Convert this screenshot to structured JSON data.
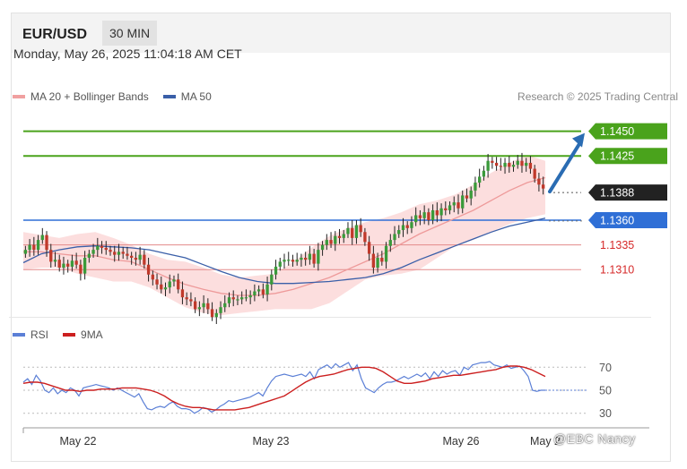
{
  "header": {
    "pair": "EUR/USD",
    "timeframe": "30 MIN"
  },
  "datetime": "Monday, May 26, 2025 11:04:18 AM CET",
  "legend": [
    {
      "label": "MA 20 + Bollinger Bands",
      "color": "#f0a0a0"
    },
    {
      "label": "MA 50",
      "color": "#3a5fa8"
    }
  ],
  "credit": "Research © 2025 Trading Central",
  "watermark": "@EBC Nancy",
  "colors": {
    "resistance": "#4aa31c",
    "support": "#2f6fd6",
    "target_red": "#d62a2a",
    "current": "#222222",
    "arrow": "#2a6cb3",
    "up_candle": "#3a9a3a",
    "down_candle": "#c0392b",
    "band_fill": "#fbd3d3"
  },
  "chart_data": [
    {
      "type": "candlestick",
      "title": "",
      "xlabel": "",
      "ylabel": "",
      "x_ticks": [
        "May 22",
        "May 23",
        "May 26",
        "May 2"
      ],
      "ylim": [
        1.1255,
        1.1465
      ],
      "levels": [
        {
          "value": 1.145,
          "label": "1.1450",
          "kind": "resistance"
        },
        {
          "value": 1.1425,
          "label": "1.1425",
          "kind": "resistance"
        },
        {
          "value": 1.1388,
          "label": "1.1388",
          "kind": "current"
        },
        {
          "value": 1.136,
          "label": "1.1360",
          "kind": "support"
        },
        {
          "value": 1.1335,
          "label": "1.1335",
          "kind": "support-minor"
        },
        {
          "value": 1.131,
          "label": "1.1310",
          "kind": "support-minor"
        }
      ],
      "projection": {
        "from": 1.1388,
        "to": 1.145
      },
      "close_path": [
        1.133,
        1.1335,
        1.133,
        1.134,
        1.1345,
        1.133,
        1.1318,
        1.132,
        1.1312,
        1.1316,
        1.1313,
        1.1319,
        1.1315,
        1.1306,
        1.1322,
        1.1326,
        1.133,
        1.1334,
        1.1332,
        1.133,
        1.1328,
        1.1325,
        1.1328,
        1.1326,
        1.1324,
        1.1322,
        1.132,
        1.1325,
        1.1315,
        1.1305,
        1.13,
        1.1295,
        1.129,
        1.1292,
        1.1298,
        1.13,
        1.129,
        1.1282,
        1.128,
        1.1278,
        1.127,
        1.1272,
        1.1276,
        1.127,
        1.1262,
        1.1266,
        1.1272,
        1.1276,
        1.1282,
        1.128,
        1.128,
        1.1282,
        1.1282,
        1.1284,
        1.1288,
        1.129,
        1.1285,
        1.1295,
        1.1305,
        1.1313,
        1.1318,
        1.132,
        1.132,
        1.1318,
        1.132,
        1.1322,
        1.132,
        1.1326,
        1.1316,
        1.133,
        1.1335,
        1.134,
        1.1336,
        1.1344,
        1.1342,
        1.1346,
        1.1352,
        1.1342,
        1.1355,
        1.1348,
        1.1338,
        1.1326,
        1.1312,
        1.1322,
        1.1318,
        1.1334,
        1.134,
        1.1346,
        1.135,
        1.1355,
        1.1352,
        1.1358,
        1.1365,
        1.1362,
        1.1368,
        1.136,
        1.137,
        1.1365,
        1.1372,
        1.137,
        1.1375,
        1.1378,
        1.1372,
        1.1385,
        1.1382,
        1.139,
        1.1398,
        1.1404,
        1.141,
        1.142,
        1.1418,
        1.1415,
        1.1414,
        1.1418,
        1.1414,
        1.1416,
        1.142,
        1.1415,
        1.1418,
        1.1412,
        1.1402,
        1.1396,
        1.1392
      ],
      "ma20_path": [
        1.1328,
        1.1328,
        1.1326,
        1.1324,
        1.1324,
        1.132,
        1.1318,
        1.131,
        1.1302,
        1.1295,
        1.129,
        1.1286,
        1.1284,
        1.1284,
        1.1286,
        1.129,
        1.1296,
        1.1302,
        1.131,
        1.1318,
        1.1326,
        1.1336,
        1.1346,
        1.1354,
        1.1362,
        1.137,
        1.138,
        1.139,
        1.1398,
        1.1403
      ],
      "band_upper": [
        1.1348,
        1.1345,
        1.1342,
        1.1346,
        1.1348,
        1.1342,
        1.1335,
        1.1326,
        1.132,
        1.1318,
        1.1312,
        1.1305,
        1.1302,
        1.1304,
        1.1306,
        1.1318,
        1.1332,
        1.1344,
        1.1352,
        1.1358,
        1.1362,
        1.1368,
        1.1376,
        1.138,
        1.1386,
        1.1396,
        1.1408,
        1.1418,
        1.1426,
        1.142
      ],
      "band_lower": [
        1.131,
        1.1312,
        1.1312,
        1.1306,
        1.1302,
        1.1298,
        1.1298,
        1.1292,
        1.1282,
        1.1272,
        1.1266,
        1.1264,
        1.1266,
        1.1268,
        1.127,
        1.127,
        1.127,
        1.1276,
        1.1288,
        1.13,
        1.1304,
        1.1306,
        1.131,
        1.1322,
        1.1334,
        1.134,
        1.1348,
        1.1356,
        1.1362,
        1.1366
      ],
      "ma50_path": [
        1.1317,
        1.1326,
        1.133,
        1.1333,
        1.1334,
        1.1333,
        1.1332,
        1.133,
        1.1326,
        1.1322,
        1.1315,
        1.1308,
        1.1302,
        1.1298,
        1.1296,
        1.1296,
        1.1297,
        1.1298,
        1.13,
        1.1302,
        1.1306,
        1.1312,
        1.132,
        1.1327,
        1.1334,
        1.1341,
        1.1348,
        1.1354,
        1.1358,
        1.1362
      ]
    },
    {
      "type": "line",
      "title": "",
      "series": [
        {
          "name": "RSI",
          "color": "#5b7fd6"
        },
        {
          "name": "9MA",
          "color": "#cc1f1f"
        }
      ],
      "yticks": [
        70,
        50,
        30
      ],
      "ylim": [
        22,
        78
      ],
      "rsi_path": [
        57,
        60,
        55,
        63,
        58,
        50,
        48,
        52,
        47,
        50,
        48,
        52,
        50,
        45,
        52,
        53,
        54,
        55,
        54,
        53,
        52,
        50,
        52,
        50,
        48,
        46,
        44,
        47,
        40,
        34,
        33,
        35,
        36,
        35,
        38,
        40,
        36,
        34,
        34,
        33,
        30,
        32,
        35,
        34,
        31,
        33,
        36,
        38,
        41,
        40,
        41,
        42,
        43,
        44,
        46,
        48,
        45,
        52,
        58,
        62,
        63,
        64,
        63,
        62,
        63,
        64,
        62,
        66,
        60,
        68,
        70,
        72,
        69,
        73,
        70,
        72,
        74,
        67,
        72,
        60,
        52,
        50,
        48,
        52,
        55,
        57,
        57,
        58,
        60,
        62,
        60,
        62,
        64,
        62,
        65,
        60,
        66,
        62,
        67,
        64,
        66,
        67,
        63,
        70,
        68,
        72,
        73,
        74,
        74,
        75,
        72,
        71,
        70,
        72,
        69,
        70,
        71,
        67,
        62,
        50,
        49,
        50,
        50
      ],
      "ma9_path": [
        56,
        57,
        57,
        56,
        54,
        52,
        50,
        50,
        49,
        50,
        50,
        51,
        51,
        51,
        52,
        52,
        52,
        51,
        50,
        48,
        45,
        41,
        38,
        36,
        35,
        35,
        34,
        33,
        33,
        33,
        33,
        34,
        35,
        37,
        39,
        41,
        43,
        45,
        49,
        53,
        57,
        60,
        62,
        63,
        64,
        66,
        68,
        69,
        70,
        70,
        69,
        66,
        62,
        58,
        56,
        56,
        57,
        58,
        60,
        61,
        62,
        63,
        63,
        64,
        65,
        66,
        67,
        68,
        70,
        71,
        71,
        70,
        68,
        65,
        62
      ]
    }
  ]
}
